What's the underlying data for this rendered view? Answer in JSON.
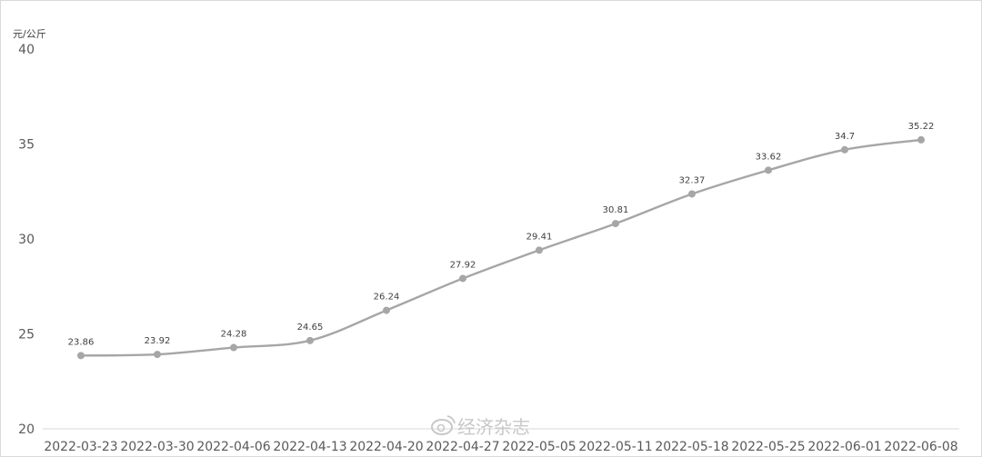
{
  "chart_data": {
    "type": "line",
    "ylabel": "元/公斤",
    "ylim": [
      20,
      40
    ],
    "yticks": [
      20,
      25,
      30,
      35,
      40
    ],
    "grid": false,
    "legend": "none",
    "line_color": "#a6a6a6",
    "categories": [
      "2022-03-23",
      "2022-03-30",
      "2022-04-06",
      "2022-04-13",
      "2022-04-20",
      "2022-04-27",
      "2022-05-05",
      "2022-05-11",
      "2022-05-18",
      "2022-05-25",
      "2022-06-01",
      "2022-06-08"
    ],
    "series": [
      {
        "values": [
          23.86,
          23.92,
          24.28,
          24.65,
          26.24,
          27.92,
          29.41,
          30.81,
          32.37,
          33.62,
          34.7,
          35.22
        ],
        "labels": [
          "23.86",
          "23.92",
          "24.28",
          "24.65",
          "26.24",
          "27.92",
          "29.41",
          "30.81",
          "32.37",
          "33.62",
          "34.7",
          "35.22"
        ]
      }
    ]
  },
  "watermark": {
    "text": "经济杂志",
    "icon": "weibo-icon"
  }
}
